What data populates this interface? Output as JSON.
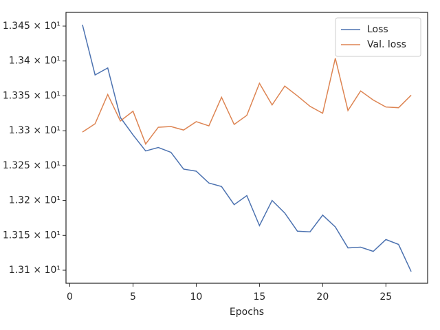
{
  "chart_data": {
    "type": "line",
    "x_label": "Epochs",
    "x": [
      1,
      2,
      3,
      4,
      5,
      6,
      7,
      8,
      9,
      10,
      11,
      12,
      13,
      14,
      15,
      16,
      17,
      18,
      19,
      20,
      21,
      22,
      23,
      24,
      25,
      26,
      27
    ],
    "series": [
      {
        "name": "Loss",
        "color": "#4c72b0",
        "values": [
          13.452,
          13.38,
          13.39,
          13.319,
          13.294,
          13.271,
          13.276,
          13.269,
          13.245,
          13.242,
          13.225,
          13.22,
          13.194,
          13.207,
          13.164,
          13.2,
          13.182,
          13.156,
          13.155,
          13.179,
          13.162,
          13.132,
          13.133,
          13.127,
          13.144,
          13.137,
          13.098
        ]
      },
      {
        "name": "Val. loss",
        "color": "#dd8452",
        "values": [
          13.298,
          13.31,
          13.352,
          13.314,
          13.328,
          13.281,
          13.305,
          13.306,
          13.301,
          13.313,
          13.307,
          13.348,
          13.309,
          13.322,
          13.368,
          13.337,
          13.364,
          13.35,
          13.335,
          13.325,
          13.404,
          13.329,
          13.357,
          13.344,
          13.334,
          13.333,
          13.351
        ]
      }
    ],
    "xlim": [
      -0.3,
      28.3
    ],
    "xticks": [
      0,
      5,
      10,
      15,
      20,
      25
    ],
    "ylim": [
      13.0813,
      13.4697
    ],
    "yticks": [
      {
        "value": 13.1,
        "label": "1.31 × 10¹"
      },
      {
        "value": 13.15,
        "label": "1.315 × 10¹"
      },
      {
        "value": 13.2,
        "label": "1.32 × 10¹"
      },
      {
        "value": 13.25,
        "label": "1.325 × 10¹"
      },
      {
        "value": 13.3,
        "label": "1.33 × 10¹"
      },
      {
        "value": 13.35,
        "label": "1.335 × 10¹"
      },
      {
        "value": 13.4,
        "label": "1.34 × 10¹"
      },
      {
        "value": 13.45,
        "label": "1.345 × 10¹"
      }
    ],
    "legend": "upper right",
    "grid": false
  }
}
